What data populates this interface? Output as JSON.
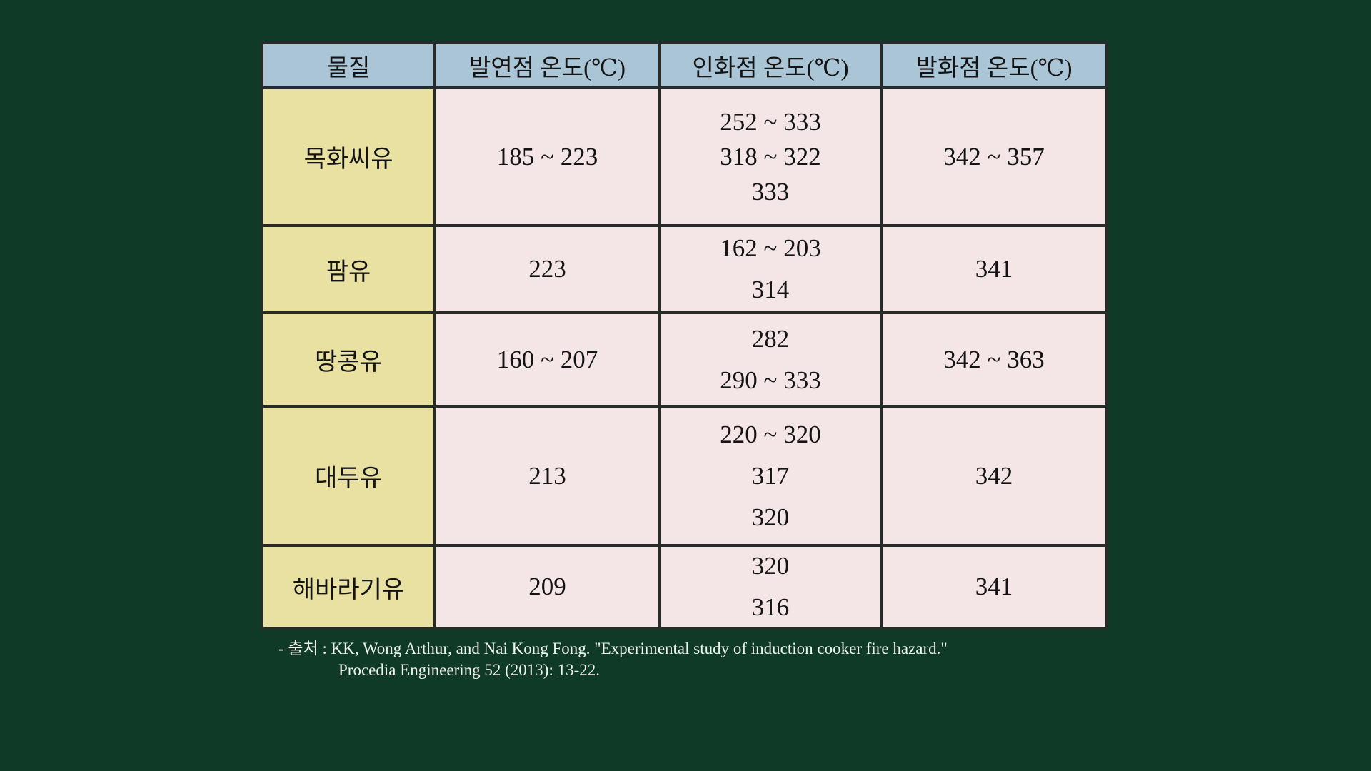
{
  "colors": {
    "background": "#0e3a27",
    "header_bg": "#a9c5d6",
    "substance_bg": "#e8e1a2",
    "value_bg": "#f4e5e7",
    "border": "#272b29",
    "citation_text": "#eff3ec"
  },
  "table": {
    "headers": [
      "물질",
      "발연점 온도(℃)",
      "인화점 온도(℃)",
      "발화점 온도(℃)"
    ],
    "rows": [
      {
        "substance": "목화씨유",
        "smoke": "185 ~ 223",
        "flash": [
          "252 ~ 333",
          "318 ~ 322",
          "333"
        ],
        "fire": "342 ~ 357"
      },
      {
        "substance": "팜유",
        "smoke": "223",
        "flash": [
          "162 ~ 203",
          "314"
        ],
        "fire": "341"
      },
      {
        "substance": "땅콩유",
        "smoke": "160 ~ 207",
        "flash": [
          "282",
          "290 ~ 333"
        ],
        "fire": "342 ~ 363"
      },
      {
        "substance": "대두유",
        "smoke": "213",
        "flash": [
          "220 ~ 320",
          "317",
          "320"
        ],
        "fire": "342"
      },
      {
        "substance": "해바라기유",
        "smoke": "209",
        "flash": [
          "320",
          "316"
        ],
        "fire": "341"
      }
    ]
  },
  "citation": {
    "line1": "- 출처 : KK, Wong Arthur, and Nai Kong Fong. \"Experimental study of induction cooker fire hazard.\"",
    "line2": "Procedia Engineering 52 (2013): 13-22."
  },
  "chart_data": {
    "type": "table",
    "title": "",
    "columns": [
      "물질",
      "발연점 온도(℃)",
      "인화점 온도(℃)",
      "발화점 온도(℃)"
    ],
    "rows": [
      [
        "목화씨유",
        "185 ~ 223",
        "252 ~ 333 / 318 ~ 322 / 333",
        "342 ~ 357"
      ],
      [
        "팜유",
        "223",
        "162 ~ 203 / 314",
        "341"
      ],
      [
        "땅콩유",
        "160 ~ 207",
        "282 / 290 ~ 333",
        "342 ~ 363"
      ],
      [
        "대두유",
        "213",
        "220 ~ 320 / 317 / 320",
        "342"
      ],
      [
        "해바라기유",
        "209",
        "320 / 316",
        "341"
      ]
    ],
    "source": "KK, Wong Arthur, and Nai Kong Fong. \"Experimental study of induction cooker fire hazard.\" Procedia Engineering 52 (2013): 13-22."
  }
}
